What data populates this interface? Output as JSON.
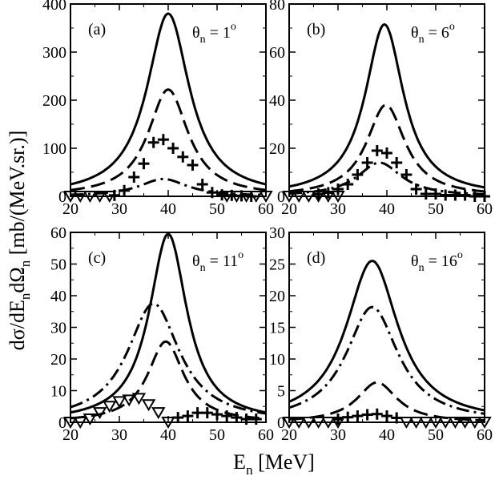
{
  "figure": {
    "ylabel_main": "dσ/dE",
    "ylabel_sub1": "n",
    "ylabel_mid": "dΩ",
    "ylabel_sub2": "n",
    "ylabel_unit": " [mb/(MeV.sr.)]",
    "xlabel_main": "E",
    "xlabel_sub": "n",
    "xlabel_unit": " [MeV]"
  },
  "chart_data": [
    {
      "type": "line",
      "panel_label": "(a)",
      "annotation": {
        "theta": "θ",
        "sub": "n",
        "eq": " = 1",
        "sup": "o"
      },
      "xlim": [
        20,
        60
      ],
      "ylim": [
        0,
        400
      ],
      "xticks": [
        20,
        30,
        40,
        50,
        60
      ],
      "yticks": [
        0,
        100,
        200,
        300,
        400
      ],
      "series": [
        {
          "name": "solid",
          "style": "solid",
          "peak": 380,
          "center": 40,
          "width": 5.3
        },
        {
          "name": "dashed",
          "style": "dashed",
          "peak": 222,
          "center": 40,
          "width": 5.0
        },
        {
          "name": "dash-dot",
          "style": "dashdot",
          "peak": 36,
          "center": 39,
          "width": 6.0
        }
      ],
      "plus_points": [
        [
          29,
          2
        ],
        [
          31,
          12
        ],
        [
          33,
          40
        ],
        [
          35,
          68
        ],
        [
          37,
          112
        ],
        [
          39,
          118
        ],
        [
          41,
          100
        ],
        [
          43,
          82
        ],
        [
          45,
          65
        ],
        [
          47,
          25
        ],
        [
          49,
          8
        ],
        [
          51,
          3
        ],
        [
          53,
          2
        ],
        [
          55,
          1
        ],
        [
          57,
          0
        ]
      ],
      "triangle_points": [
        [
          20,
          0
        ],
        [
          22,
          0
        ],
        [
          24,
          0
        ],
        [
          26,
          0
        ],
        [
          28,
          0
        ],
        [
          52,
          0
        ],
        [
          54,
          0
        ],
        [
          56,
          0
        ],
        [
          58,
          0
        ],
        [
          60,
          0
        ]
      ]
    },
    {
      "type": "line",
      "panel_label": "(b)",
      "annotation": {
        "theta": "θ",
        "sub": "n",
        "eq": " = 6",
        "sup": "o"
      },
      "xlim": [
        20,
        60
      ],
      "ylim": [
        0,
        80
      ],
      "xticks": [
        20,
        30,
        40,
        50,
        60
      ],
      "yticks": [
        0,
        20,
        40,
        60,
        80
      ],
      "series": [
        {
          "name": "solid",
          "style": "solid",
          "peak": 71.5,
          "center": 39.5,
          "width": 4.8
        },
        {
          "name": "dashed",
          "style": "dashed",
          "peak": 38,
          "center": 39.8,
          "width": 4.8
        },
        {
          "name": "dash-dot",
          "style": "dashdot",
          "peak": 14,
          "center": 38.5,
          "width": 5.5
        }
      ],
      "plus_points": [
        [
          26,
          1
        ],
        [
          28,
          1.5
        ],
        [
          30,
          3
        ],
        [
          32,
          5
        ],
        [
          34,
          9
        ],
        [
          36,
          14
        ],
        [
          38,
          19
        ],
        [
          40,
          18
        ],
        [
          42,
          14
        ],
        [
          44,
          9
        ],
        [
          46,
          3
        ],
        [
          48,
          1
        ],
        [
          50,
          1
        ],
        [
          52,
          0.5
        ],
        [
          54,
          0.5
        ],
        [
          56,
          0.5
        ],
        [
          58,
          0
        ],
        [
          60,
          0
        ]
      ],
      "triangle_points": [
        [
          20,
          0
        ],
        [
          22,
          0
        ],
        [
          24,
          0
        ],
        [
          26,
          0
        ],
        [
          28,
          0
        ],
        [
          30,
          0
        ]
      ]
    },
    {
      "type": "line",
      "panel_label": "(c)",
      "annotation": {
        "theta": "θ",
        "sub": "n",
        "eq": " = 11",
        "sup": "o"
      },
      "xlim": [
        20,
        60
      ],
      "ylim": [
        0,
        60
      ],
      "xticks": [
        20,
        30,
        40,
        50,
        60
      ],
      "yticks": [
        0,
        10,
        20,
        30,
        40,
        50,
        60
      ],
      "series": [
        {
          "name": "solid",
          "style": "solid",
          "peak": 59.5,
          "center": 40,
          "width": 4.7
        },
        {
          "name": "dashed",
          "style": "dashed",
          "peak": 25.5,
          "center": 39.5,
          "width": 4.5
        },
        {
          "name": "dash-dot",
          "style": "dashdot",
          "peak": 37.5,
          "center": 37,
          "width": 6.5
        }
      ],
      "plus_points": [
        [
          42,
          1.5
        ],
        [
          44,
          2
        ],
        [
          46,
          3
        ],
        [
          48,
          3
        ],
        [
          50,
          2.5
        ],
        [
          52,
          2
        ],
        [
          54,
          1.5
        ],
        [
          56,
          1
        ],
        [
          58,
          1
        ]
      ],
      "triangle_points": [
        [
          20,
          0
        ],
        [
          22,
          0
        ],
        [
          24,
          1
        ],
        [
          26,
          3
        ],
        [
          28,
          5
        ],
        [
          30,
          6.5
        ],
        [
          32,
          7
        ],
        [
          34,
          7.5
        ],
        [
          36,
          5.5
        ],
        [
          38,
          3
        ],
        [
          40,
          0
        ]
      ]
    },
    {
      "type": "line",
      "panel_label": "(d)",
      "annotation": {
        "theta": "θ",
        "sub": "n",
        "eq": " = 16",
        "sup": "o"
      },
      "xlim": [
        20,
        60
      ],
      "ylim": [
        0,
        30
      ],
      "xticks": [
        20,
        30,
        40,
        50,
        60
      ],
      "yticks": [
        0,
        5,
        10,
        15,
        20,
        25,
        30
      ],
      "series": [
        {
          "name": "solid",
          "style": "solid",
          "peak": 25.5,
          "center": 37,
          "width": 6.5
        },
        {
          "name": "dashed",
          "style": "dashed",
          "peak": 6.3,
          "center": 38,
          "width": 5.0
        },
        {
          "name": "dash-dot",
          "style": "dashdot",
          "peak": 18.2,
          "center": 37,
          "width": 6.5
        }
      ],
      "plus_points": [
        [
          30,
          0.5
        ],
        [
          32,
          0.8
        ],
        [
          34,
          1
        ],
        [
          36,
          1.2
        ],
        [
          38,
          1.3
        ],
        [
          40,
          1.0
        ],
        [
          42,
          0.7
        ]
      ],
      "triangle_points": [
        [
          20,
          0
        ],
        [
          22,
          0
        ],
        [
          24,
          0
        ],
        [
          26,
          0
        ],
        [
          28,
          0
        ],
        [
          30,
          0
        ],
        [
          44,
          0
        ],
        [
          46,
          0
        ],
        [
          48,
          0
        ],
        [
          50,
          0
        ],
        [
          52,
          0
        ],
        [
          54,
          0
        ],
        [
          56,
          0
        ],
        [
          58,
          0
        ],
        [
          60,
          0
        ]
      ]
    }
  ]
}
